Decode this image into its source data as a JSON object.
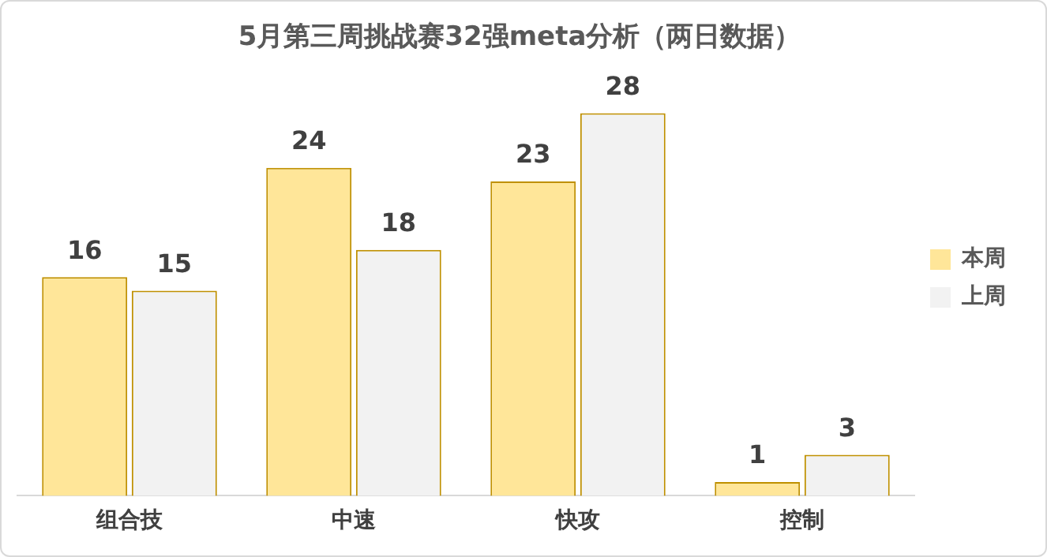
{
  "chart_data": {
    "type": "bar",
    "title": "5月第三周挑战赛32强meta分析（两日数据）",
    "categories": [
      "组合技",
      "中速",
      "快攻",
      "控制"
    ],
    "series": [
      {
        "name": "本周",
        "color": "#ffe699",
        "values": [
          16,
          24,
          23,
          1
        ]
      },
      {
        "name": "上周",
        "color": "#f2f2f2",
        "values": [
          15,
          18,
          28,
          3
        ]
      }
    ],
    "data_labels": true,
    "legend": "right",
    "grid": false,
    "tick_labels": "x"
  }
}
